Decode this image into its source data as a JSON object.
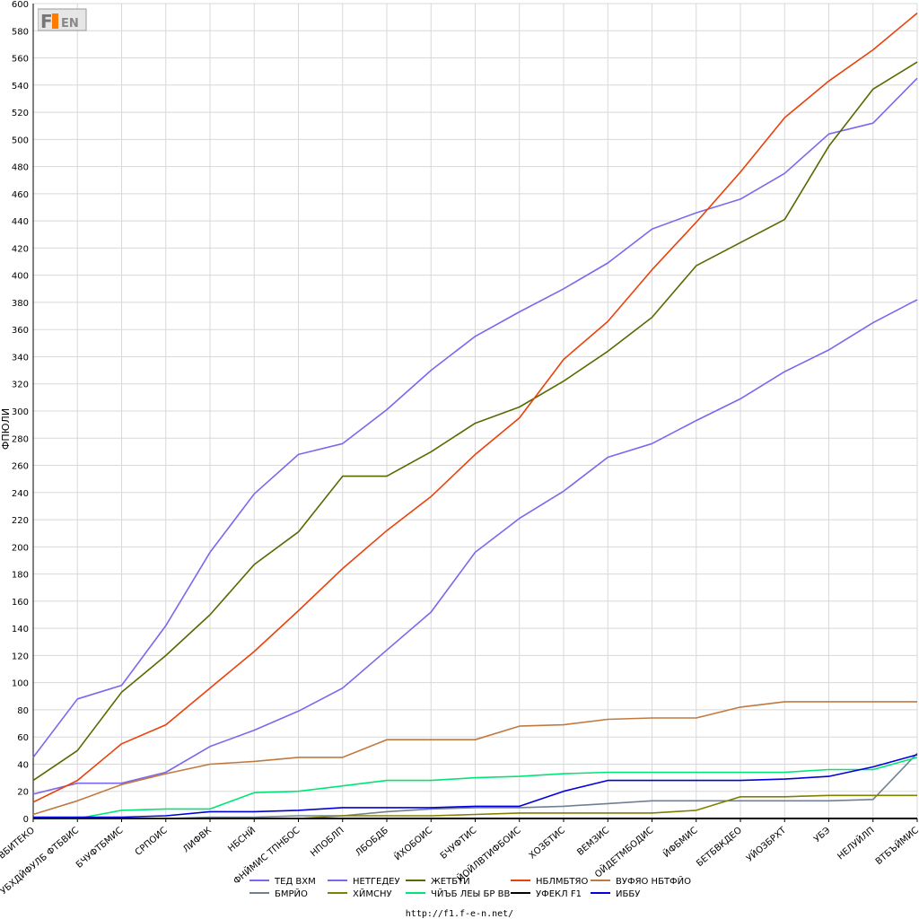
{
  "footer_url": "http://f1.f-e-n.net/",
  "logo_text": "F1FEN",
  "chart_data": {
    "type": "line",
    "ylabel": "ФПЮЛИ",
    "ylim": [
      0,
      600
    ],
    "ytick_step": 20,
    "grid": true,
    "legend_position": "bottom",
    "categories": [
      "ВБИТЕКО",
      "УБХДЙФУЛБ ФТБВИС",
      "БЧУФТБМИС",
      "СРПОИС",
      "ЛИФВК",
      "НБСНЙ",
      "ФНЙМИС ТПНБОС",
      "НПОБЛП",
      "ЛБОБДБ",
      "ЙХОБОИС",
      "БЧУФТИС",
      "ЙОЙЛВТИФБОИС",
      "ХОЗБТИС",
      "ВЕМЗИС",
      "ОЙДЕТМБОДИС",
      "ЙФБМИС",
      "БЕТБВКДЕО",
      "УЙОЗБРХТ",
      "УБЭ",
      "НЕЛУЙЛП",
      "ВТБЪЙМИС"
    ],
    "series": [
      {
        "name": "ТЕД ВХМ",
        "color": "#7b68ee",
        "values": [
          45,
          88,
          98,
          142,
          196,
          239,
          268,
          276,
          301,
          330,
          355,
          373,
          390,
          409,
          434,
          446,
          456,
          475,
          504,
          512,
          545
        ]
      },
      {
        "name": "НЕТГЕДЕУ",
        "color": "#7b68ee",
        "values": [
          18,
          26,
          26,
          34,
          53,
          65,
          79,
          96,
          124,
          152,
          196,
          221,
          241,
          266,
          276,
          293,
          309,
          329,
          345,
          365,
          382
        ]
      },
      {
        "name": "ЖЕТБТЙ",
        "color": "#556b00",
        "values": [
          28,
          50,
          93,
          120,
          150,
          187,
          211,
          252,
          252,
          270,
          291,
          303,
          322,
          344,
          369,
          407,
          424,
          441,
          495,
          537,
          557
        ]
      },
      {
        "name": "НБЛМБТЯО",
        "color": "#e8420b",
        "values": [
          12,
          28,
          55,
          69,
          96,
          123,
          153,
          184,
          212,
          237,
          268,
          295,
          338,
          366,
          404,
          439,
          476,
          516,
          543,
          566,
          593
        ]
      },
      {
        "name": "ВУФЯО НБТФЙО",
        "color": "#c07a40",
        "values": [
          3,
          13,
          25,
          33,
          40,
          42,
          45,
          45,
          58,
          58,
          58,
          68,
          69,
          73,
          74,
          74,
          82,
          86,
          86,
          86,
          86
        ]
      },
      {
        "name": "БМРЙО",
        "color": "#708090",
        "values": [
          0,
          0,
          0,
          0,
          1,
          1,
          2,
          2,
          5,
          7,
          8,
          8,
          9,
          11,
          13,
          13,
          13,
          13,
          13,
          14,
          48
        ]
      },
      {
        "name": "ХЙМСНУ",
        "color": "#808000",
        "values": [
          0,
          0,
          0,
          0,
          0,
          0,
          0,
          2,
          2,
          2,
          3,
          4,
          4,
          4,
          4,
          6,
          16,
          16,
          17,
          17,
          17
        ]
      },
      {
        "name": "ЧЙЪБ ЛЕЫ БР ВВ",
        "color": "#00e676",
        "values": [
          0,
          0,
          6,
          7,
          7,
          19,
          20,
          24,
          28,
          28,
          30,
          31,
          33,
          34,
          34,
          34,
          34,
          34,
          36,
          36,
          45
        ]
      },
      {
        "name": "УФЕКЛ F1",
        "color": "#000000",
        "values": [
          0,
          0,
          0,
          0,
          0,
          0,
          0,
          0,
          0,
          0,
          0,
          0,
          0,
          0,
          0,
          0,
          0,
          0,
          0,
          0,
          0
        ]
      },
      {
        "name": "ИББУ",
        "color": "#0000dd",
        "values": [
          1,
          1,
          1,
          2,
          5,
          5,
          6,
          8,
          8,
          8,
          9,
          9,
          20,
          28,
          28,
          28,
          28,
          29,
          31,
          38,
          47
        ]
      }
    ]
  }
}
